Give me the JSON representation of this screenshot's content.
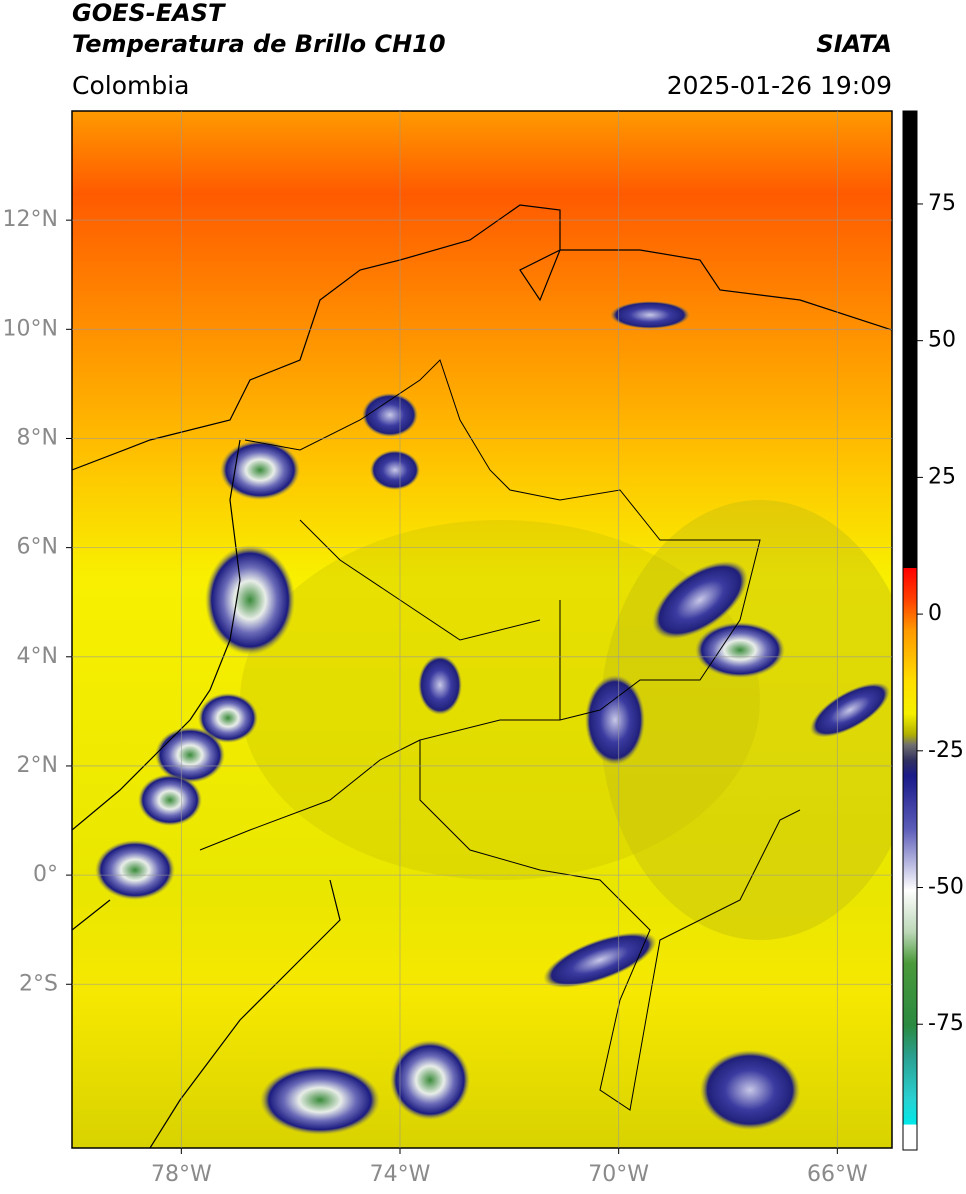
{
  "header": {
    "title": "GOES-EAST",
    "subtitle": "Temperatura de Brillo CH10",
    "source": "SIATA",
    "region": "Colombia",
    "datetime": "2025-01-26 19:09"
  },
  "map": {
    "xlim": [
      -80,
      -65
    ],
    "ylim": [
      -5,
      14
    ],
    "xticks": [
      {
        "value": -78,
        "label": "78°W"
      },
      {
        "value": -74,
        "label": "74°W"
      },
      {
        "value": -70,
        "label": "70°W"
      },
      {
        "value": -66,
        "label": "66°W"
      }
    ],
    "yticks": [
      {
        "value": 12,
        "label": "12°N"
      },
      {
        "value": 10,
        "label": "10°N"
      },
      {
        "value": 8,
        "label": "8°N"
      },
      {
        "value": 6,
        "label": "6°N"
      },
      {
        "value": 4,
        "label": "4°N"
      },
      {
        "value": 2,
        "label": "2°N"
      },
      {
        "value": 0,
        "label": "0°"
      },
      {
        "value": -2,
        "label": "2°S"
      }
    ],
    "grid": true
  },
  "colorbar": {
    "lim": [
      -98,
      92
    ],
    "ticks": [
      75,
      50,
      25,
      0,
      -25,
      -50,
      -75
    ]
  }
}
